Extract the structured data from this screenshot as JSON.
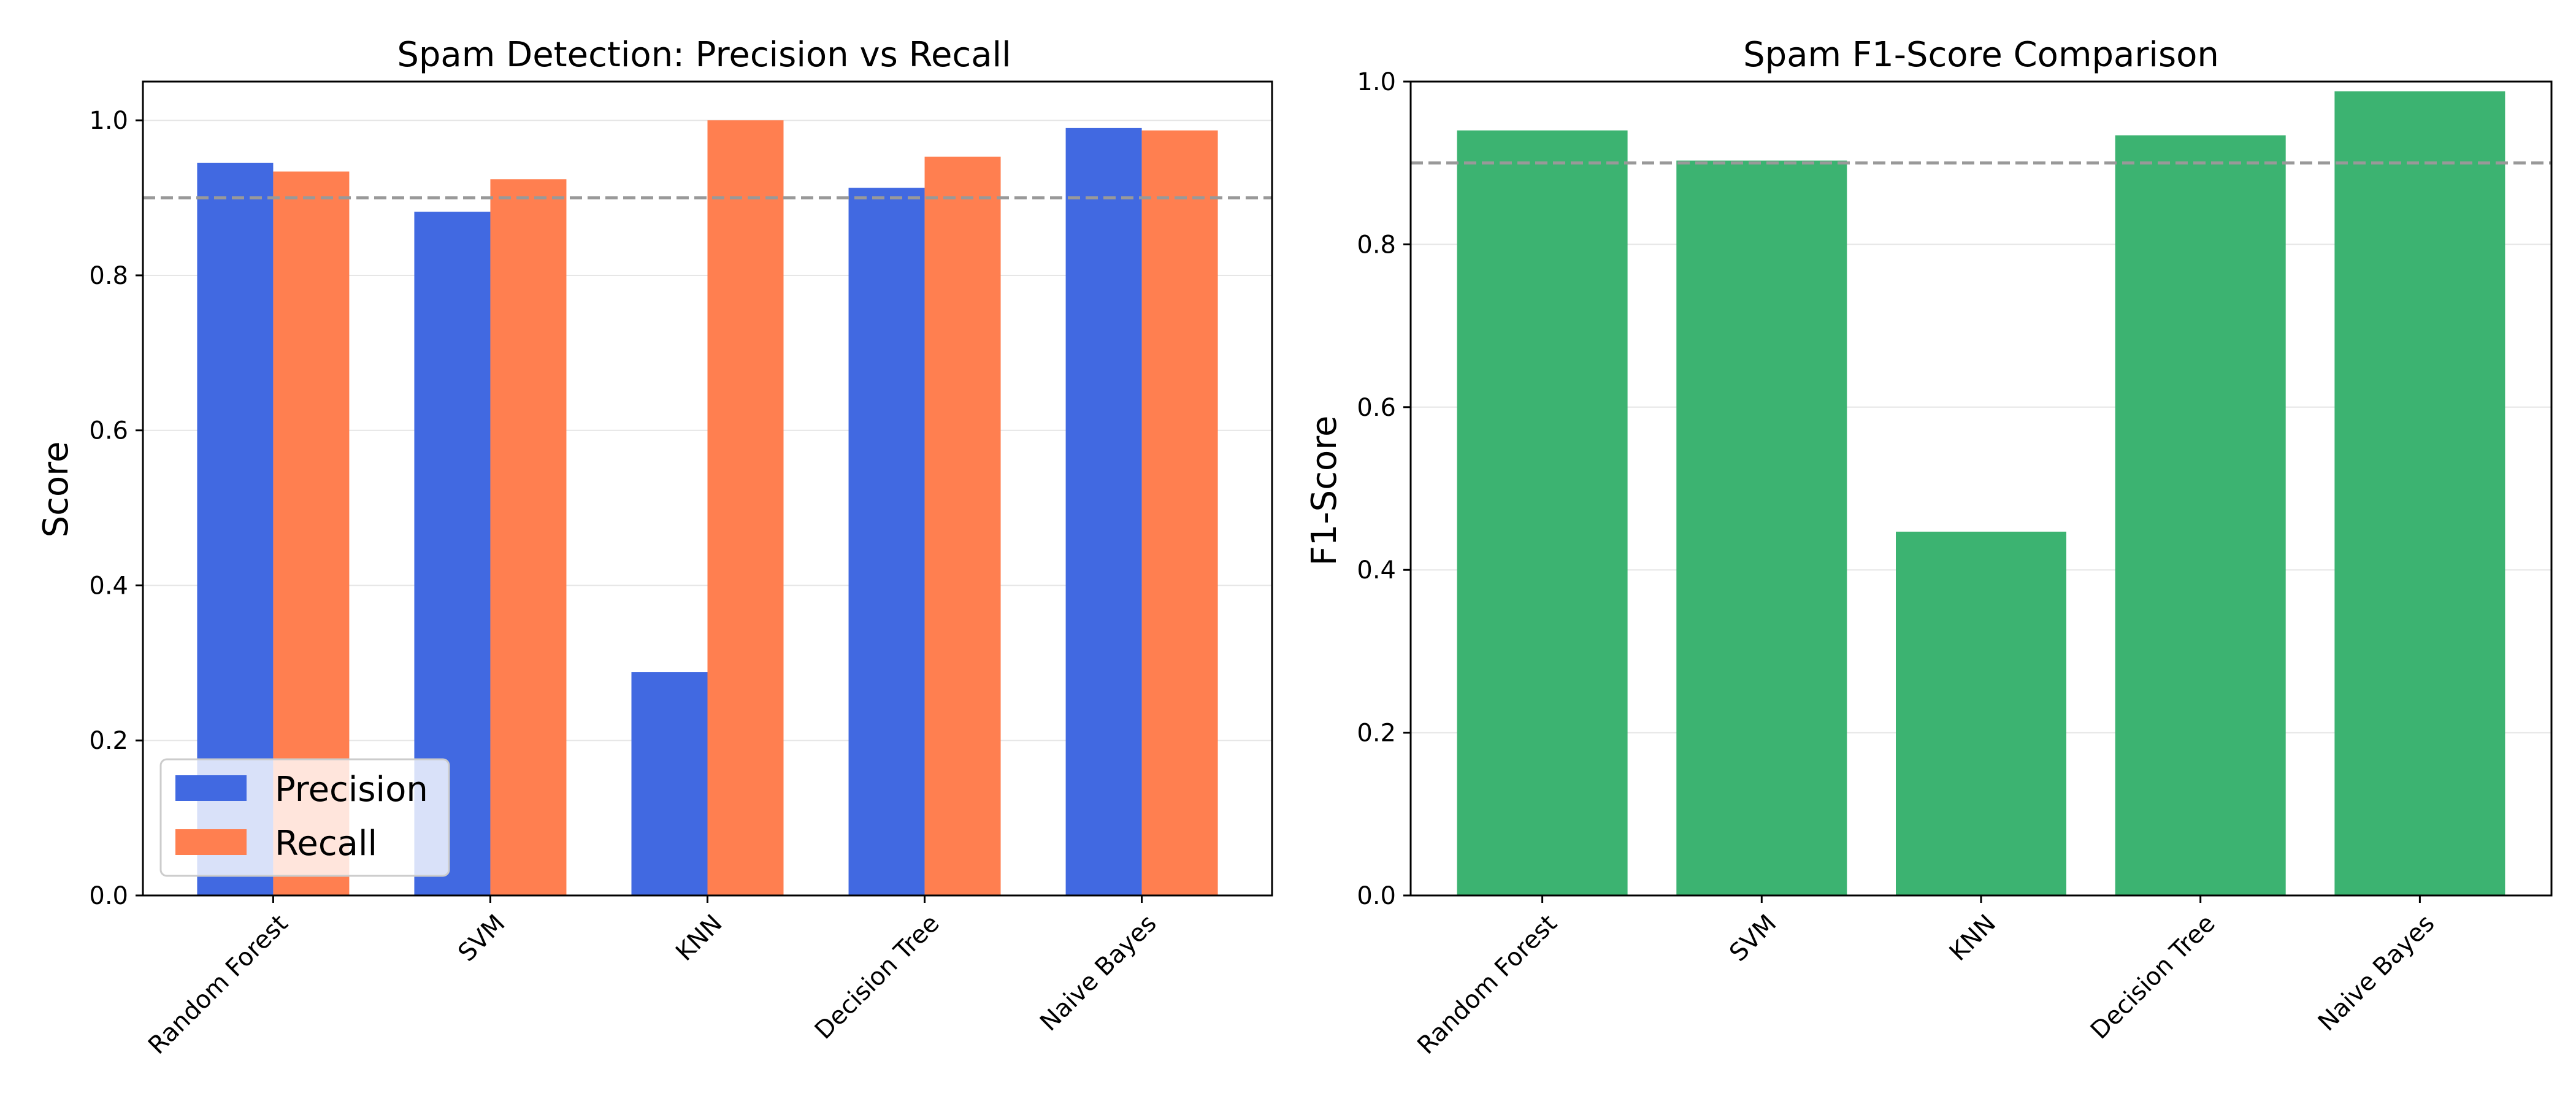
{
  "colors": {
    "precision": "#4169e1",
    "recall": "#ff7f50",
    "f1": "#3cb371",
    "reference_line": "#999999",
    "grid": "#e6e6e6",
    "axes": "#000000"
  },
  "chart_data": [
    {
      "type": "bar",
      "title": "Spam Detection: Precision vs Recall",
      "xlabel": "",
      "ylabel": "Score",
      "categories": [
        "Random Forest",
        "SVM",
        "KNN",
        "Decision Tree",
        "Naive Bayes"
      ],
      "series": [
        {
          "name": "Precision",
          "values": [
            0.945,
            0.882,
            0.288,
            0.913,
            0.99
          ]
        },
        {
          "name": "Recall",
          "values": [
            0.934,
            0.924,
            1.0,
            0.953,
            0.987
          ]
        }
      ],
      "ylim": [
        0,
        1.05
      ],
      "yticks": [
        0.0,
        0.2,
        0.4,
        0.6,
        0.8,
        1.0
      ],
      "ytick_labels": [
        "0.0",
        "0.2",
        "0.4",
        "0.6",
        "0.8",
        "1.0"
      ],
      "reference_line": 0.9,
      "grid": "horizontal",
      "legend_position": "lower-left"
    },
    {
      "type": "bar",
      "title": "Spam F1-Score Comparison",
      "xlabel": "",
      "ylabel": "F1-Score",
      "categories": [
        "Random Forest",
        "SVM",
        "KNN",
        "Decision Tree",
        "Naive Bayes"
      ],
      "values": [
        0.94,
        0.903,
        0.447,
        0.934,
        0.988
      ],
      "ylim": [
        0,
        1.0
      ],
      "yticks": [
        0.0,
        0.2,
        0.4,
        0.6,
        0.8,
        1.0
      ],
      "ytick_labels": [
        "0.0",
        "0.2",
        "0.4",
        "0.6",
        "0.8",
        "1.0"
      ],
      "reference_line": 0.9,
      "grid": "horizontal"
    }
  ]
}
